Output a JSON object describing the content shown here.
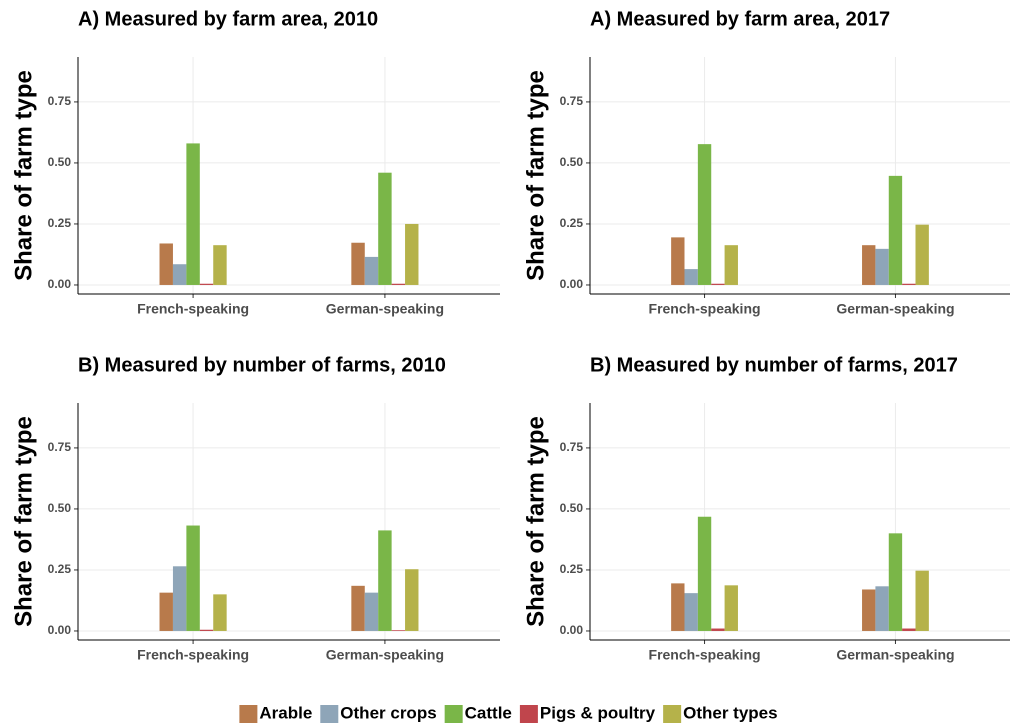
{
  "chart_data": [
    {
      "type": "bar",
      "title": "A) Measured by farm area, 2010",
      "y_label": "Share of farm type",
      "categories": [
        "French-speaking",
        "German-speaking"
      ],
      "series": [
        {
          "name": "Arable",
          "color": "#b87a4b",
          "values": [
            0.17,
            0.173
          ]
        },
        {
          "name": "Other crops",
          "color": "#8ea5b8",
          "values": [
            0.085,
            0.115
          ]
        },
        {
          "name": "Cattle",
          "color": "#7ab648",
          "values": [
            0.58,
            0.46
          ]
        },
        {
          "name": "Pigs & poultry",
          "color": "#c0454c",
          "values": [
            0.005,
            0.005
          ]
        },
        {
          "name": "Other types",
          "color": "#b5b24a",
          "values": [
            0.163,
            0.25
          ]
        }
      ],
      "ylim": [
        -0.037,
        0.934
      ],
      "yticks": [
        {
          "value": 0,
          "label": "0.00"
        },
        {
          "value": 0.25,
          "label": "0.25"
        },
        {
          "value": 0.5,
          "label": "0.50"
        },
        {
          "value": 0.75,
          "label": "0.75"
        }
      ],
      "grid": true
    },
    {
      "type": "bar",
      "title": "A) Measured by farm area, 2017",
      "y_label": "Share of farm type",
      "categories": [
        "French-speaking",
        "German-speaking"
      ],
      "series": [
        {
          "name": "Arable",
          "color": "#b87a4b",
          "values": [
            0.195,
            0.163
          ]
        },
        {
          "name": "Other crops",
          "color": "#8ea5b8",
          "values": [
            0.065,
            0.148
          ]
        },
        {
          "name": "Cattle",
          "color": "#7ab648",
          "values": [
            0.577,
            0.447
          ]
        },
        {
          "name": "Pigs & poultry",
          "color": "#c0454c",
          "values": [
            0.005,
            0.005
          ]
        },
        {
          "name": "Other types",
          "color": "#b5b24a",
          "values": [
            0.163,
            0.247
          ]
        }
      ],
      "ylim": [
        -0.037,
        0.934
      ],
      "yticks": [
        {
          "value": 0,
          "label": "0.00"
        },
        {
          "value": 0.25,
          "label": "0.25"
        },
        {
          "value": 0.5,
          "label": "0.50"
        },
        {
          "value": 0.75,
          "label": "0.75"
        }
      ],
      "grid": true
    },
    {
      "type": "bar",
      "title": "B) Measured by number of farms, 2010",
      "y_label": "Share of farm type",
      "categories": [
        "French-speaking",
        "German-speaking"
      ],
      "series": [
        {
          "name": "Arable",
          "color": "#b87a4b",
          "values": [
            0.157,
            0.185
          ]
        },
        {
          "name": "Other crops",
          "color": "#8ea5b8",
          "values": [
            0.265,
            0.157
          ]
        },
        {
          "name": "Cattle",
          "color": "#7ab648",
          "values": [
            0.432,
            0.412
          ]
        },
        {
          "name": "Pigs & poultry",
          "color": "#c0454c",
          "values": [
            0.005,
            0.003
          ]
        },
        {
          "name": "Other types",
          "color": "#b5b24a",
          "values": [
            0.15,
            0.253
          ]
        }
      ],
      "ylim": [
        -0.037,
        0.934
      ],
      "yticks": [
        {
          "value": 0,
          "label": "0.00"
        },
        {
          "value": 0.25,
          "label": "0.25"
        },
        {
          "value": 0.5,
          "label": "0.50"
        },
        {
          "value": 0.75,
          "label": "0.75"
        }
      ],
      "grid": true
    },
    {
      "type": "bar",
      "title": "B) Measured by number of farms, 2017",
      "y_label": "Share of farm type",
      "categories": [
        "French-speaking",
        "German-speaking"
      ],
      "series": [
        {
          "name": "Arable",
          "color": "#b87a4b",
          "values": [
            0.195,
            0.17
          ]
        },
        {
          "name": "Other crops",
          "color": "#8ea5b8",
          "values": [
            0.155,
            0.183
          ]
        },
        {
          "name": "Cattle",
          "color": "#7ab648",
          "values": [
            0.468,
            0.4
          ]
        },
        {
          "name": "Pigs & poultry",
          "color": "#c0454c",
          "values": [
            0.01,
            0.01
          ]
        },
        {
          "name": "Other types",
          "color": "#b5b24a",
          "values": [
            0.187,
            0.247
          ]
        }
      ],
      "ylim": [
        -0.037,
        0.934
      ],
      "yticks": [
        {
          "value": 0,
          "label": "0.00"
        },
        {
          "value": 0.25,
          "label": "0.25"
        },
        {
          "value": 0.5,
          "label": "0.50"
        },
        {
          "value": 0.75,
          "label": "0.75"
        }
      ],
      "grid": true
    }
  ]
}
